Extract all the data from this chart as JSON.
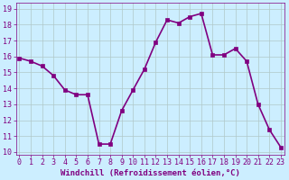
{
  "x": [
    0,
    1,
    2,
    3,
    4,
    5,
    6,
    7,
    8,
    9,
    10,
    11,
    12,
    13,
    14,
    15,
    16,
    17,
    18,
    19,
    20,
    21,
    22,
    23
  ],
  "y": [
    15.9,
    15.7,
    15.4,
    14.8,
    13.9,
    13.6,
    13.6,
    10.5,
    10.5,
    12.6,
    13.9,
    15.2,
    16.9,
    18.3,
    18.1,
    18.5,
    18.7,
    16.1,
    16.1,
    16.5,
    15.7,
    13.0,
    11.4,
    10.3
  ],
  "line_color": "#800080",
  "marker_color": "#800080",
  "bg_color": "#cceeff",
  "grid_color": "#b0c8c8",
  "xlabel": "Windchill (Refroidissement éolien,°C)",
  "ylim_min": 10,
  "ylim_max": 19,
  "xlim_min": 0,
  "xlim_max": 23,
  "yticks": [
    10,
    11,
    12,
    13,
    14,
    15,
    16,
    17,
    18,
    19
  ],
  "xticks": [
    0,
    1,
    2,
    3,
    4,
    5,
    6,
    7,
    8,
    9,
    10,
    11,
    12,
    13,
    14,
    15,
    16,
    17,
    18,
    19,
    20,
    21,
    22,
    23
  ],
  "tick_color": "#800080",
  "xlabel_fontsize": 6.5,
  "tick_fontsize": 6.0,
  "linewidth": 1.2,
  "markersize": 3.0
}
